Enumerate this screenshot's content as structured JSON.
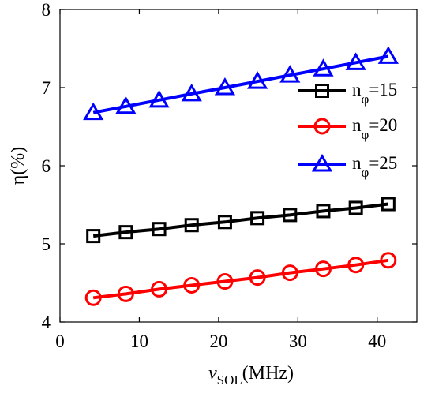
{
  "chart_data": {
    "type": "line",
    "title": "",
    "xlabel": {
      "main": "ν",
      "sub": "SOL",
      "unit": "(MHz)"
    },
    "ylabel": "η(%)",
    "xlim": [
      0,
      45
    ],
    "ylim": [
      4,
      8
    ],
    "xticks": [
      0,
      10,
      20,
      30,
      40
    ],
    "yticks": [
      4,
      5,
      6,
      7,
      8
    ],
    "grid": false,
    "legend_position": "upper-right",
    "x": [
      4.2,
      8.3,
      12.5,
      16.6,
      20.8,
      24.9,
      29.0,
      33.2,
      37.3,
      41.4
    ],
    "series": [
      {
        "name": {
          "main": "n",
          "sub": "φ",
          "suffix": "=15"
        },
        "marker": "square",
        "color": "#000000",
        "values": [
          5.1,
          5.15,
          5.19,
          5.24,
          5.28,
          5.33,
          5.37,
          5.42,
          5.46,
          5.51
        ]
      },
      {
        "name": {
          "main": "n",
          "sub": "φ",
          "suffix": "=20"
        },
        "marker": "circle",
        "color": "#ff0000",
        "values": [
          4.31,
          4.36,
          4.42,
          4.47,
          4.52,
          4.57,
          4.63,
          4.68,
          4.73,
          4.79
        ]
      },
      {
        "name": {
          "main": "n",
          "sub": "φ",
          "suffix": "=25"
        },
        "marker": "triangle",
        "color": "#0000ff",
        "values": [
          6.68,
          6.76,
          6.84,
          6.92,
          7.0,
          7.08,
          7.16,
          7.24,
          7.32,
          7.4
        ]
      }
    ]
  }
}
